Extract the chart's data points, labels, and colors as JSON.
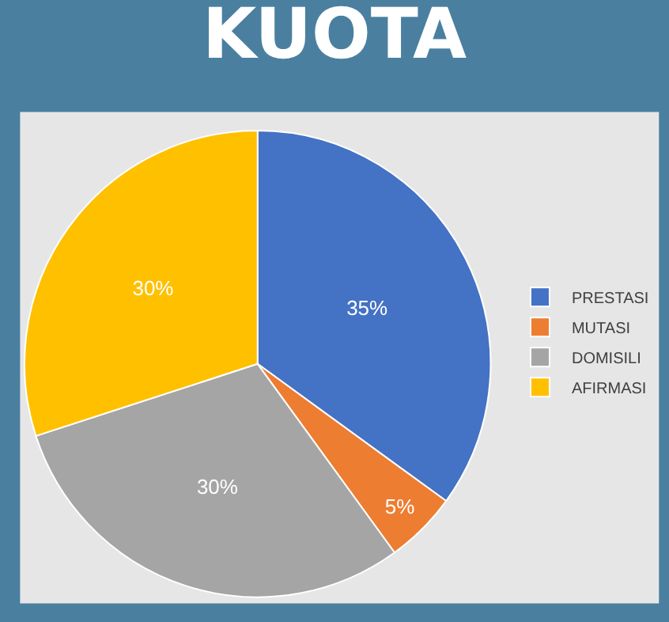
{
  "chart_data": {
    "type": "pie",
    "title": "KUOTA",
    "categories": [
      "PRESTASI",
      "MUTASI",
      "DOMISILI",
      "AFIRMASI"
    ],
    "values": [
      35,
      5,
      30,
      30
    ],
    "value_labels": [
      "35%",
      "5%",
      "30%",
      "30%"
    ],
    "colors": [
      "#4472c4",
      "#ed7d31",
      "#a5a5a5",
      "#ffc000"
    ],
    "legend": "right"
  }
}
